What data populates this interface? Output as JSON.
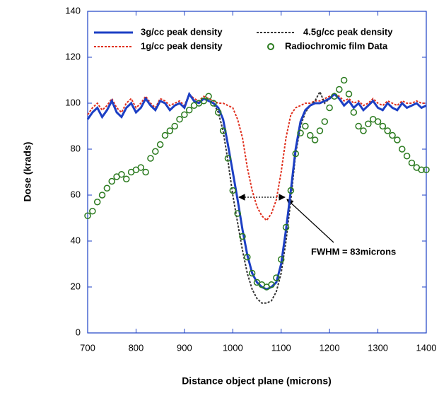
{
  "chart_data": {
    "type": "line",
    "xlabel": "Distance object plane (microns)",
    "ylabel": "Dose  (krads)",
    "annotation": "FWHM = 83microns",
    "xlim": [
      700,
      1400
    ],
    "xticks": [
      700,
      800,
      900,
      1000,
      1100,
      1200,
      1300,
      1400
    ],
    "ylim": [
      0,
      140
    ],
    "yticks": [
      0,
      20,
      40,
      60,
      80,
      100,
      120,
      140
    ],
    "x": [
      700,
      710,
      720,
      730,
      740,
      750,
      760,
      770,
      780,
      790,
      800,
      810,
      820,
      830,
      840,
      850,
      860,
      870,
      880,
      890,
      900,
      910,
      920,
      930,
      940,
      950,
      960,
      970,
      980,
      990,
      1000,
      1010,
      1020,
      1030,
      1040,
      1050,
      1060,
      1070,
      1080,
      1090,
      1100,
      1110,
      1120,
      1130,
      1140,
      1150,
      1160,
      1170,
      1180,
      1190,
      1200,
      1210,
      1220,
      1230,
      1240,
      1250,
      1260,
      1270,
      1280,
      1290,
      1300,
      1310,
      1320,
      1330,
      1340,
      1350,
      1360,
      1370,
      1380,
      1390,
      1400
    ],
    "series": [
      {
        "name": "3g/cc peak density",
        "color": "#1c3fc4",
        "type": "line",
        "dash": false,
        "values": [
          93,
          96,
          98,
          94,
          97,
          101,
          96,
          94,
          98,
          100,
          96,
          98,
          102,
          99,
          97,
          101,
          100,
          97,
          99,
          100,
          98,
          104,
          101,
          100,
          102,
          101,
          100,
          98,
          93,
          82,
          70,
          58,
          45,
          34,
          26,
          22,
          20,
          19,
          20,
          22,
          30,
          45,
          62,
          80,
          92,
          97,
          99,
          100,
          100,
          101,
          102,
          104,
          102,
          99,
          101,
          98,
          100,
          97,
          99,
          101,
          98,
          97,
          100,
          98,
          97,
          100,
          98,
          99,
          100,
          98,
          99
        ]
      },
      {
        "name": "4.5g/cc peak density",
        "color": "#333333",
        "type": "line",
        "dash": true,
        "values": [
          null,
          null,
          null,
          null,
          null,
          null,
          null,
          null,
          null,
          null,
          null,
          null,
          null,
          null,
          null,
          null,
          null,
          null,
          null,
          null,
          null,
          null,
          null,
          null,
          null,
          101,
          100,
          96,
          88,
          75,
          60,
          48,
          36,
          26,
          19,
          15,
          13,
          13,
          14,
          18,
          26,
          40,
          58,
          78,
          90,
          96,
          99,
          101,
          105,
          100,
          102,
          null,
          null,
          null,
          null,
          null,
          null,
          null,
          null,
          null,
          null,
          null,
          null,
          null,
          null,
          null,
          null,
          null,
          null,
          null,
          null
        ]
      },
      {
        "name": "1g/cc peak density",
        "color": "#e0301e",
        "type": "line",
        "dash": true,
        "values": [
          95,
          98,
          100,
          97,
          99,
          102,
          98,
          96,
          100,
          102,
          98,
          100,
          103,
          100,
          98,
          102,
          101,
          99,
          100,
          101,
          99,
          104,
          102,
          101,
          103,
          102,
          101,
          100,
          100,
          99,
          98,
          93,
          85,
          72,
          62,
          55,
          51,
          49,
          52,
          58,
          70,
          85,
          95,
          98,
          99,
          100,
          100,
          101,
          101,
          102,
          103,
          104,
          103,
          101,
          102,
          100,
          101,
          99,
          100,
          102,
          100,
          99,
          101,
          100,
          99,
          101,
          100,
          100,
          101,
          100,
          100
        ]
      },
      {
        "name": "Radiochromic film Data",
        "color": "#2a7a1e",
        "type": "scatter",
        "dash": false,
        "values": [
          51,
          53,
          57,
          60,
          63,
          66,
          68,
          69,
          67,
          70,
          71,
          72,
          70,
          76,
          79,
          82,
          86,
          88,
          90,
          93,
          95,
          97,
          99,
          100,
          101,
          103,
          100,
          96,
          88,
          76,
          62,
          52,
          42,
          33,
          26,
          22,
          21,
          20,
          21,
          24,
          32,
          46,
          62,
          78,
          87,
          90,
          86,
          84,
          88,
          92,
          98,
          103,
          106,
          110,
          104,
          96,
          90,
          88,
          91,
          93,
          92,
          90,
          88,
          86,
          84,
          80,
          77,
          74,
          72,
          71,
          71
        ]
      }
    ]
  }
}
